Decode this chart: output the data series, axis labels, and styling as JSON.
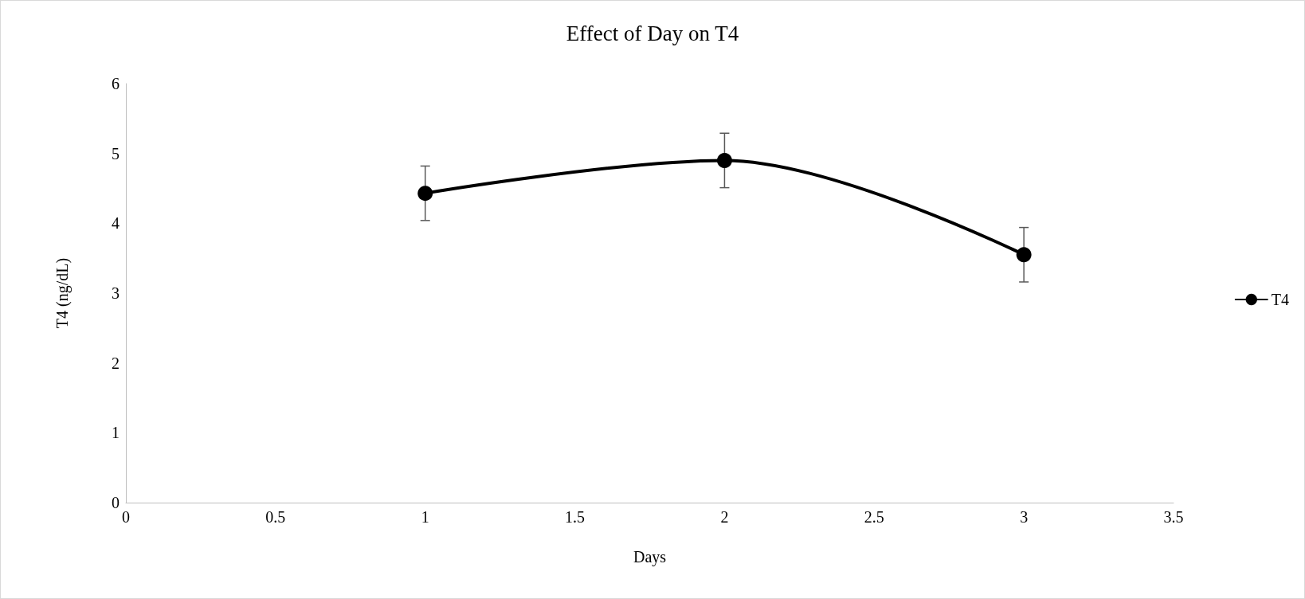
{
  "chart_data": {
    "type": "line",
    "title": "Effect of Day on T4",
    "xlabel": "Days",
    "ylabel": "T4 (ng/dL)",
    "x": [
      1,
      2,
      3
    ],
    "series": [
      {
        "name": "T4",
        "color": "#000000",
        "values": [
          4.43,
          4.9,
          3.55
        ],
        "errors": [
          0.39,
          0.39,
          0.39
        ]
      }
    ],
    "xlim": [
      0,
      3.5
    ],
    "xticks": [
      0,
      0.5,
      1,
      1.5,
      2,
      2.5,
      3,
      3.5
    ],
    "ylim": [
      0,
      6
    ],
    "yticks": [
      0,
      1,
      2,
      3,
      4,
      5,
      6
    ],
    "grid": false,
    "legend": "right",
    "marker": "circle",
    "line_style": "solid"
  }
}
